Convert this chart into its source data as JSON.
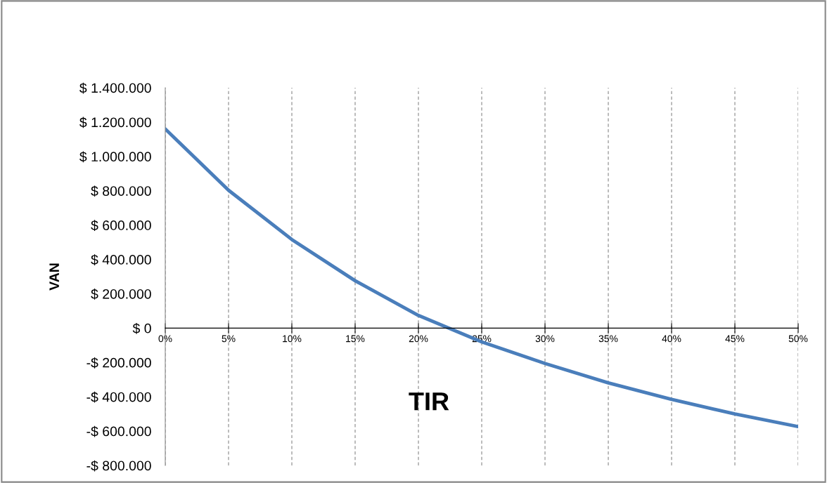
{
  "chart_data": {
    "type": "line",
    "xlabel": "TIR",
    "ylabel": "VAN",
    "x": [
      0,
      5,
      10,
      15,
      20,
      25,
      30,
      35,
      40,
      45,
      50
    ],
    "series": [
      {
        "color": "#4a7ebb",
        "values": [
          1160000,
          803000,
          516000,
          276000,
          74000,
          -80000,
          -206000,
          -319000,
          -415000,
          -500000,
          -574000
        ]
      }
    ],
    "xlim": [
      0,
      50
    ],
    "xticks": [
      {
        "value": 0,
        "label": "0%"
      },
      {
        "value": 5,
        "label": "5%"
      },
      {
        "value": 10,
        "label": "10%"
      },
      {
        "value": 15,
        "label": "15%"
      },
      {
        "value": 20,
        "label": "20%"
      },
      {
        "value": 25,
        "label": "25%"
      },
      {
        "value": 30,
        "label": "30%"
      },
      {
        "value": 35,
        "label": "35%"
      },
      {
        "value": 40,
        "label": "40%"
      },
      {
        "value": 45,
        "label": "45%"
      },
      {
        "value": 50,
        "label": "50%"
      }
    ],
    "ylim": [
      -800000,
      1400000
    ],
    "yticks": [
      {
        "value": -800000,
        "label": "-$ 800.000"
      },
      {
        "value": -600000,
        "label": "-$ 600.000"
      },
      {
        "value": -400000,
        "label": "-$ 400.000"
      },
      {
        "value": -200000,
        "label": "-$ 200.000"
      },
      {
        "value": 0,
        "label": "$ 0"
      },
      {
        "value": 200000,
        "label": "$ 200.000"
      },
      {
        "value": 400000,
        "label": "$ 400.000"
      },
      {
        "value": 600000,
        "label": "$ 600.000"
      },
      {
        "value": 800000,
        "label": "$ 800.000"
      },
      {
        "value": 1000000,
        "label": "$ 1.000.000"
      },
      {
        "value": 1200000,
        "label": "$ 1.200.000"
      },
      {
        "value": 1400000,
        "label": "$ 1.400.000"
      }
    ],
    "grid": "x",
    "line_style": "solid",
    "marker": "none"
  }
}
